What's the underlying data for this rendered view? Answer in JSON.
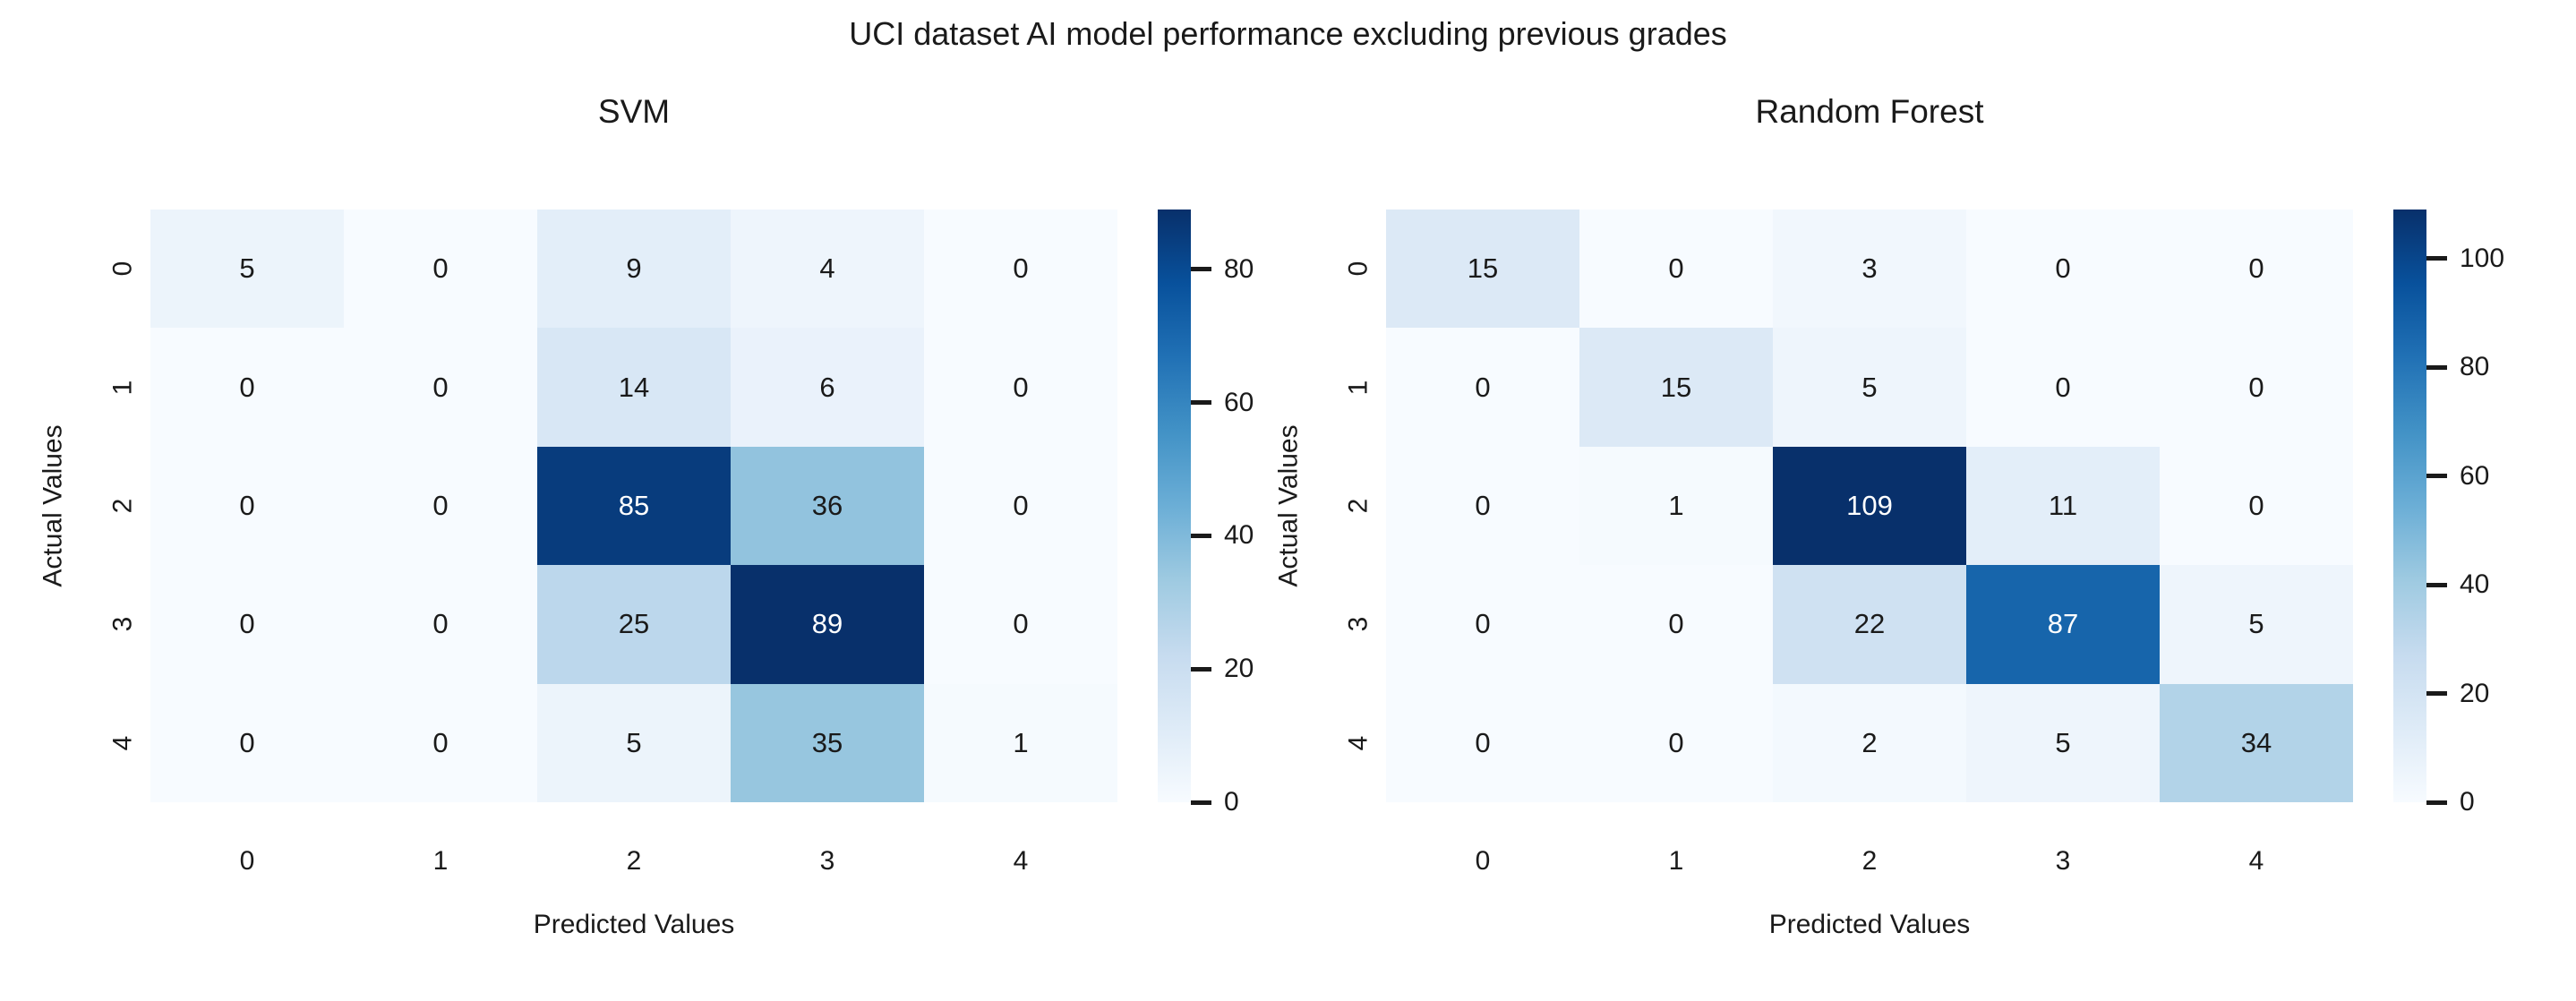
{
  "title": "UCI dataset AI model performance excluding previous grades",
  "colors": {
    "background": "#ffffff",
    "text": "#1a1a1a",
    "annotation_dark": "#1a1a1a",
    "annotation_light": "#ffffff",
    "colormap_name": "Blues",
    "colormap_stops": [
      "#f7fbff",
      "#deebf7",
      "#c6dbef",
      "#9ecae1",
      "#6baed6",
      "#4292c6",
      "#2171b5",
      "#08519c",
      "#08306b"
    ]
  },
  "chart_data": [
    {
      "type": "heatmap",
      "title": "SVM",
      "xlabel": "Predicted Values",
      "ylabel": "Actual Values",
      "x_categories": [
        "0",
        "1",
        "2",
        "3",
        "4"
      ],
      "y_categories": [
        "0",
        "1",
        "2",
        "3",
        "4"
      ],
      "matrix": [
        [
          5,
          0,
          9,
          4,
          0
        ],
        [
          0,
          0,
          14,
          6,
          0
        ],
        [
          0,
          0,
          85,
          36,
          0
        ],
        [
          0,
          0,
          25,
          89,
          0
        ],
        [
          0,
          0,
          5,
          35,
          1
        ]
      ],
      "vmin": 0,
      "vmax": 89,
      "colorbar_ticks": [
        0,
        20,
        40,
        60,
        80
      ],
      "legend_position": "right-colorbar",
      "grid": "off"
    },
    {
      "type": "heatmap",
      "title": "Random Forest",
      "xlabel": "Predicted Values",
      "ylabel": "Actual Values",
      "x_categories": [
        "0",
        "1",
        "2",
        "3",
        "4"
      ],
      "y_categories": [
        "0",
        "1",
        "2",
        "3",
        "4"
      ],
      "matrix": [
        [
          15,
          0,
          3,
          0,
          0
        ],
        [
          0,
          15,
          5,
          0,
          0
        ],
        [
          0,
          1,
          109,
          11,
          0
        ],
        [
          0,
          0,
          22,
          87,
          5
        ],
        [
          0,
          0,
          2,
          5,
          34
        ]
      ],
      "vmin": 0,
      "vmax": 109,
      "colorbar_ticks": [
        0,
        20,
        40,
        60,
        80,
        100
      ],
      "legend_position": "right-colorbar",
      "grid": "off"
    }
  ]
}
